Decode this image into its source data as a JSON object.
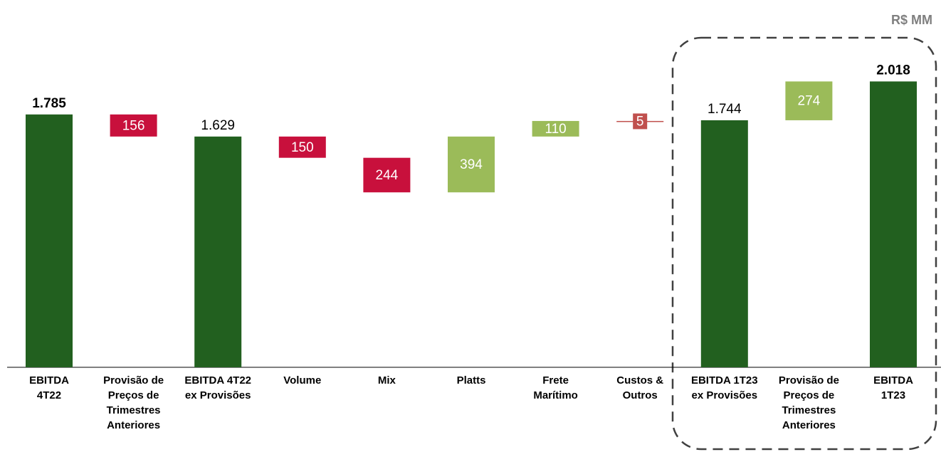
{
  "chart_data": {
    "type": "waterfall",
    "unit": "R$ MM",
    "categories": [
      [
        "EBITDA",
        "4T22"
      ],
      [
        "Provisão de",
        "Preços de",
        "Trimestres",
        "Anteriores"
      ],
      [
        "EBITDA 4T22",
        "ex Provisões"
      ],
      [
        "Volume"
      ],
      [
        "Mix"
      ],
      [
        "Platts"
      ],
      [
        "Frete",
        "Marítimo"
      ],
      [
        "Custos &",
        "Outros"
      ],
      [
        "EBITDA 1T23",
        "ex Provisões"
      ],
      [
        "Provisão de",
        "Preços de",
        "Trimestres",
        "Anteriores"
      ],
      [
        "EBITDA",
        "1T23"
      ]
    ],
    "measures": [
      "total",
      "delta",
      "total",
      "delta",
      "delta",
      "delta",
      "delta",
      "delta",
      "total",
      "delta",
      "total"
    ],
    "values": [
      1785,
      -156,
      1629,
      -150,
      -244,
      394,
      110,
      -5,
      1744,
      274,
      2018
    ],
    "value_labels": [
      "1.785",
      "156",
      "1.629",
      "150",
      "244",
      "394",
      "110",
      "5",
      "1.744",
      "274",
      "2.018"
    ],
    "bold_labels": [
      true,
      false,
      false,
      false,
      false,
      false,
      false,
      false,
      false,
      false,
      true
    ],
    "colors": [
      "#22601f",
      "#c8103c",
      "#22601f",
      "#c8103c",
      "#c8103c",
      "#9bbb59",
      "#9bbb59",
      "#c0504d",
      "#22601f",
      "#9bbb59",
      "#22601f"
    ]
  }
}
